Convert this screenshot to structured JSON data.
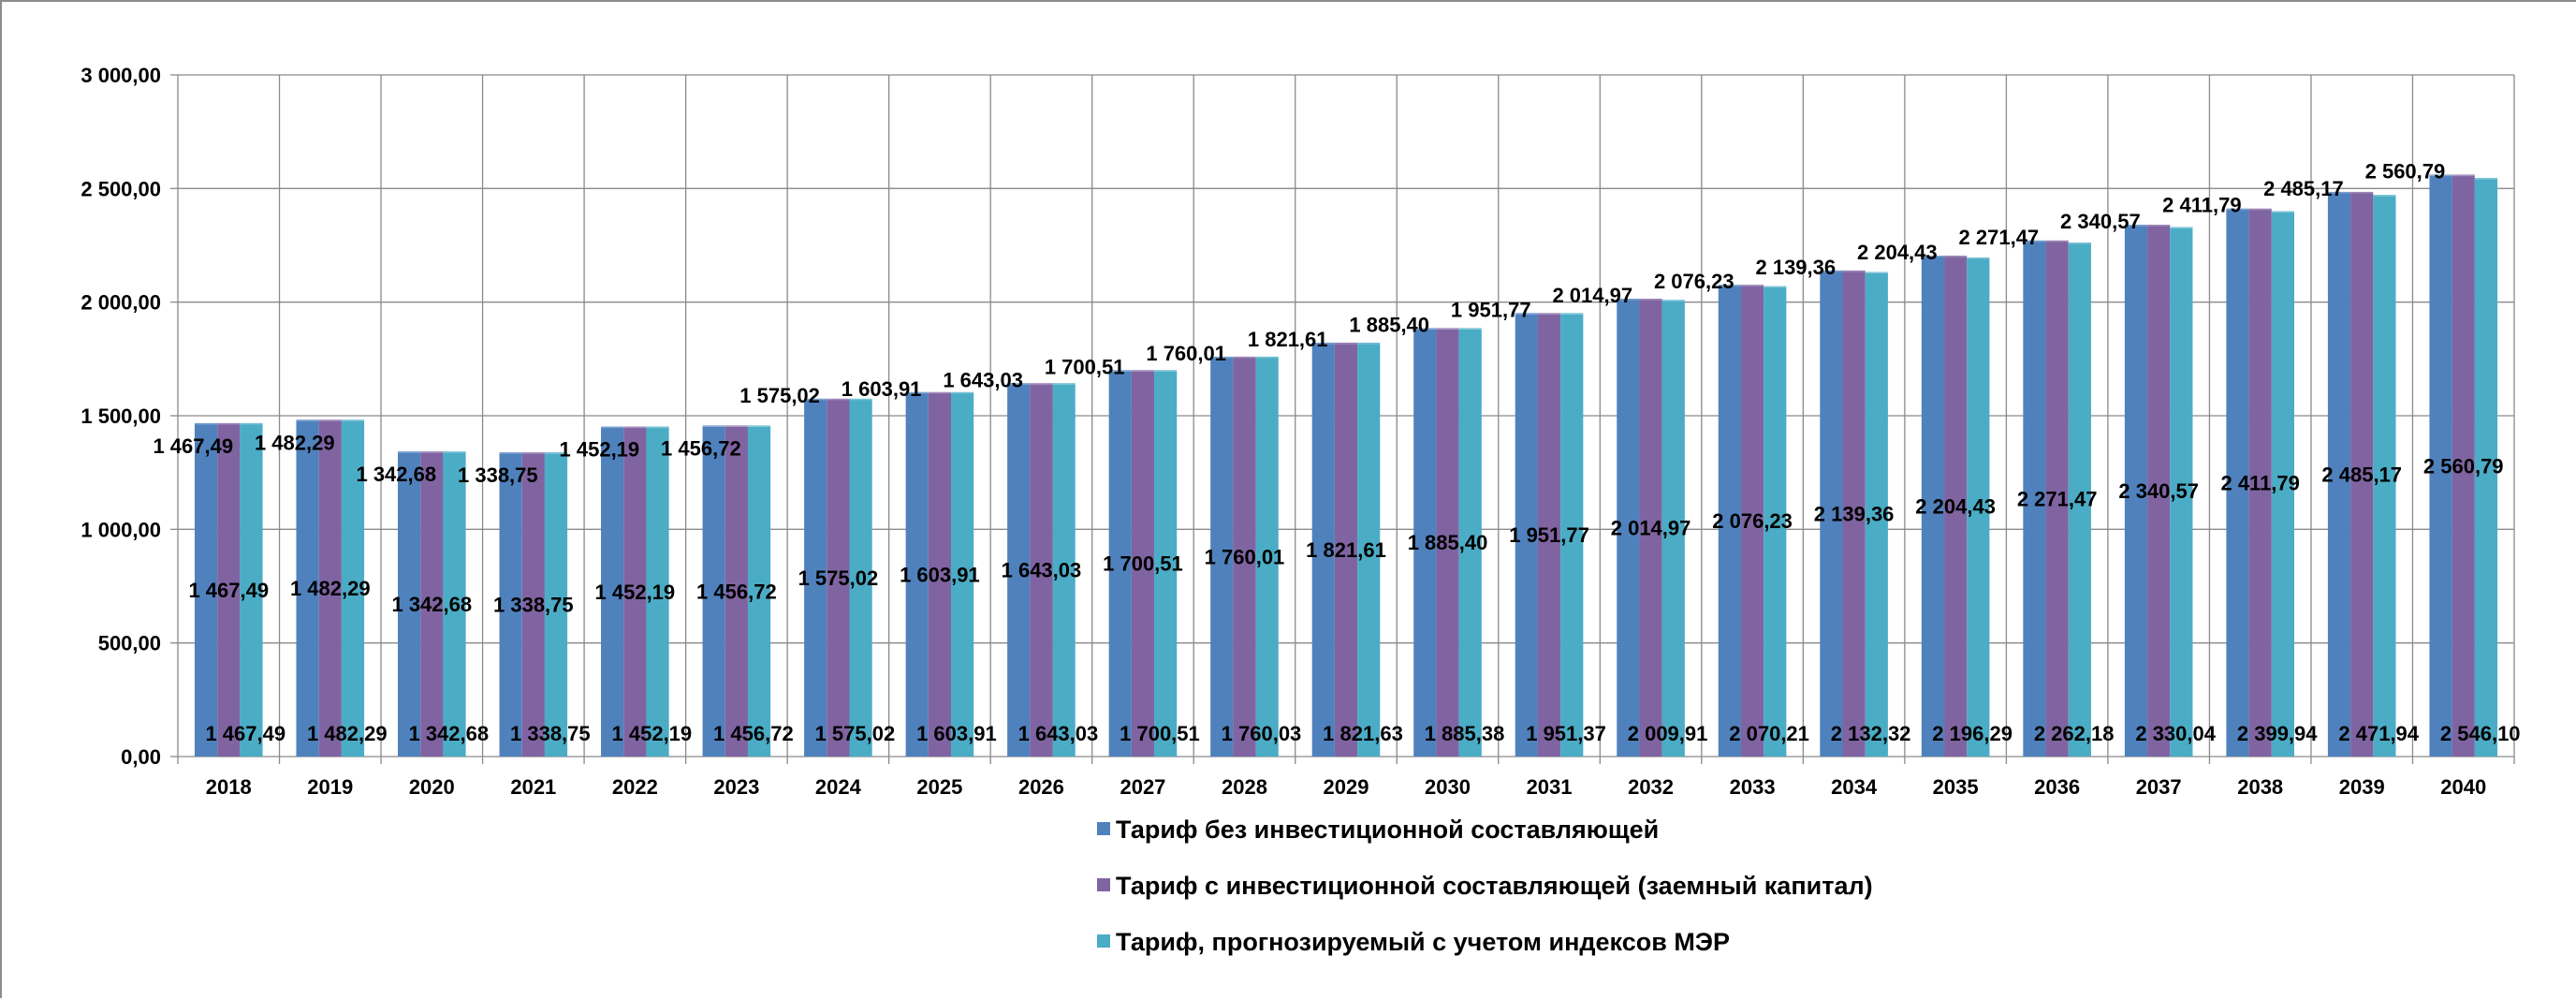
{
  "chart_data": {
    "type": "bar",
    "title": "",
    "xlabel": "",
    "ylabel": "",
    "ylim": [
      0,
      3000
    ],
    "y_ticks": [
      "0,00",
      "500,00",
      "1 000,00",
      "1 500,00",
      "2 000,00",
      "2 500,00",
      "3 000,00"
    ],
    "grid": "on",
    "legend_position": "bottom",
    "categories": [
      "2018",
      "2019",
      "2020",
      "2021",
      "2022",
      "2023",
      "2024",
      "2025",
      "2026",
      "2027",
      "2028",
      "2029",
      "2030",
      "2031",
      "2032",
      "2033",
      "2034",
      "2035",
      "2036",
      "2037",
      "2038",
      "2039",
      "2040"
    ],
    "series": [
      {
        "name": "Тариф без инвестиционной составляющей",
        "color": "#4f81bd",
        "values": [
          1467.49,
          1482.29,
          1342.68,
          1338.75,
          1452.19,
          1456.72,
          1575.02,
          1603.91,
          1643.03,
          1700.51,
          1760.01,
          1821.61,
          1885.4,
          1951.77,
          2014.97,
          2076.23,
          2139.36,
          2204.43,
          2271.47,
          2340.57,
          2411.79,
          2485.17,
          2560.79
        ],
        "labels": [
          "1 467,49",
          "1 482,29",
          "1 342,68",
          "1 338,75",
          "1 452,19",
          "1 456,72",
          "1 575,02",
          "1 603,91",
          "1 643,03",
          "1 700,51",
          "1 760,01",
          "1 821,61",
          "1 885,40",
          "1 951,77",
          "2 014,97",
          "2 076,23",
          "2 139,36",
          "2 204,43",
          "2 271,47",
          "2 340,57",
          "2 411,79",
          "2 485,17",
          "2 560,79"
        ]
      },
      {
        "name": "Тариф с инвестиционной составляющей (заемный капитал)",
        "color": "#8064a2",
        "values": [
          1467.49,
          1482.29,
          1342.68,
          1338.75,
          1452.19,
          1456.72,
          1575.02,
          1603.91,
          1643.03,
          1700.51,
          1760.01,
          1821.61,
          1885.4,
          1951.77,
          2014.97,
          2076.23,
          2139.36,
          2204.43,
          2271.47,
          2340.57,
          2411.79,
          2485.17,
          2560.79
        ],
        "labels": [
          "1 467,49",
          "1 482,29",
          "1 342,68",
          "1 338,75",
          "1 452,19",
          "1 456,72",
          "1 575,02",
          "1 603,91",
          "1 643,03",
          "1 700,51",
          "1 760,01",
          "1 821,61",
          "1 885,40",
          "1 951,77",
          "2 014,97",
          "2 076,23",
          "2 139,36",
          "2 204,43",
          "2 271,47",
          "2 340,57",
          "2 411,79",
          "2 485,17",
          "2 560,79"
        ]
      },
      {
        "name": "Тариф, прогнозируемый с учетом индексов МЭР",
        "color": "#4bacc6",
        "values": [
          1467.49,
          1482.29,
          1342.68,
          1338.75,
          1452.19,
          1456.72,
          1575.02,
          1603.91,
          1643.03,
          1700.51,
          1760.03,
          1821.63,
          1885.38,
          1951.37,
          2009.91,
          2070.21,
          2132.32,
          2196.29,
          2262.18,
          2330.04,
          2399.94,
          2471.94,
          2546.1
        ],
        "labels": [
          "1 467,49",
          "1 482,29",
          "1 342,68",
          "1 338,75",
          "1 452,19",
          "1 456,72",
          "1 575,02",
          "1 603,91",
          "1 643,03",
          "1 700,51",
          "1 760,03",
          "1 821,63",
          "1 885,38",
          "1 951,37",
          "2 009,91",
          "2 070,21",
          "2 132,32",
          "2 196,29",
          "2 262,18",
          "2 330,04",
          "2 399,94",
          "2 471,94",
          "2 546,10"
        ]
      }
    ]
  }
}
